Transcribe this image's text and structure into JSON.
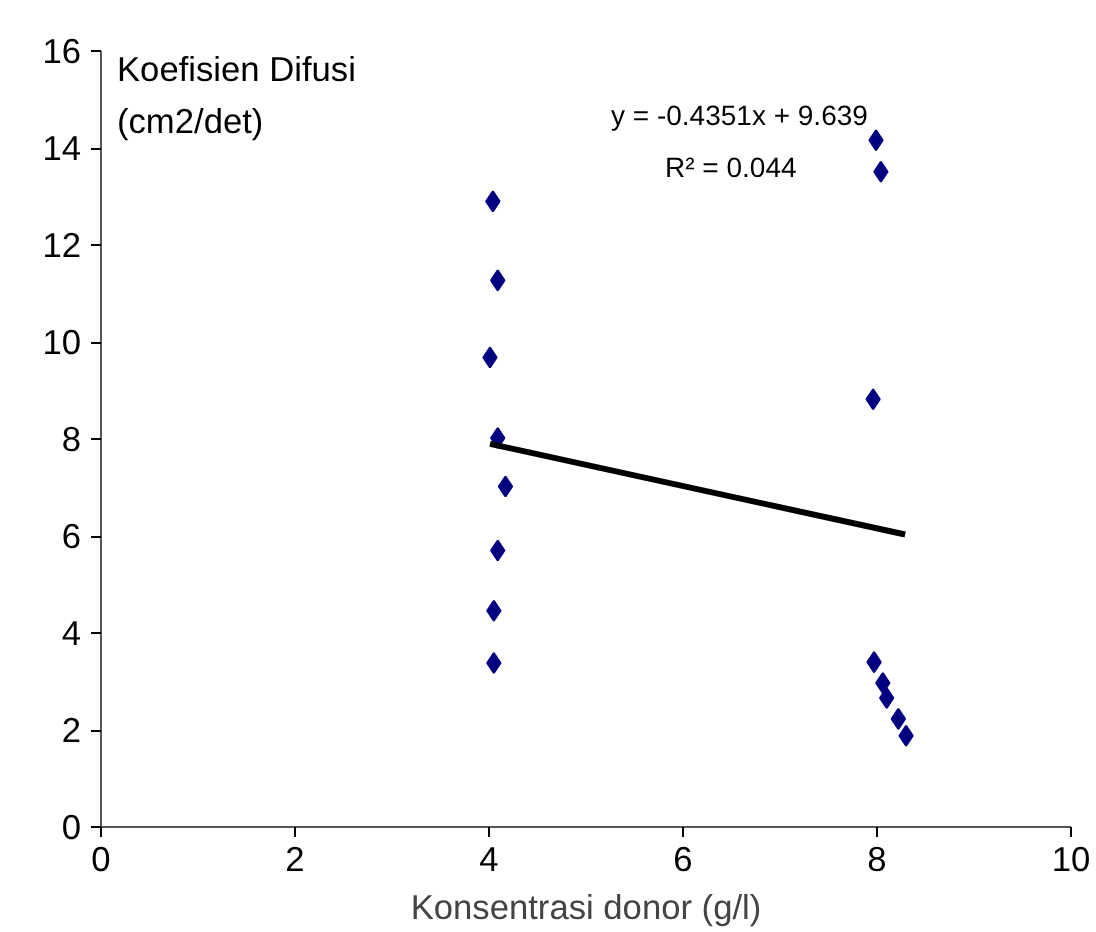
{
  "chart_data": {
    "type": "scatter",
    "xlabel": "Konsentrasi donor (g/l)",
    "ylabel": "Koefisien Difusi\n(cm2/det)",
    "xlim": [
      0,
      10
    ],
    "xticks": [
      0,
      2,
      4,
      6,
      8,
      10
    ],
    "ylim": [
      0,
      16
    ],
    "yticks": [
      0,
      2,
      4,
      6,
      8,
      10,
      12,
      14,
      16
    ],
    "grid": false,
    "marker": "diamond",
    "annotations": [
      "y = -0.4351x + 9.639",
      "R² = 0.044"
    ],
    "series": [
      {
        "color": "#000080",
        "x": [
          4.04,
          4.09,
          4.01,
          4.09,
          4.17,
          4.09,
          4.05,
          4.05,
          7.99,
          8.04,
          7.96,
          7.97,
          8.06,
          8.1,
          8.22,
          8.3
        ],
        "values": [
          12.9,
          11.27,
          9.68,
          8.02,
          7.02,
          5.7,
          4.46,
          3.38,
          14.16,
          13.51,
          8.82,
          3.4,
          2.97,
          2.66,
          2.23,
          1.88
        ]
      },
      {
        "type": "line",
        "color": "#000000",
        "marker": "none",
        "x": [
          4.01,
          8.29
        ],
        "values": [
          7.9,
          6.03
        ]
      }
    ]
  }
}
